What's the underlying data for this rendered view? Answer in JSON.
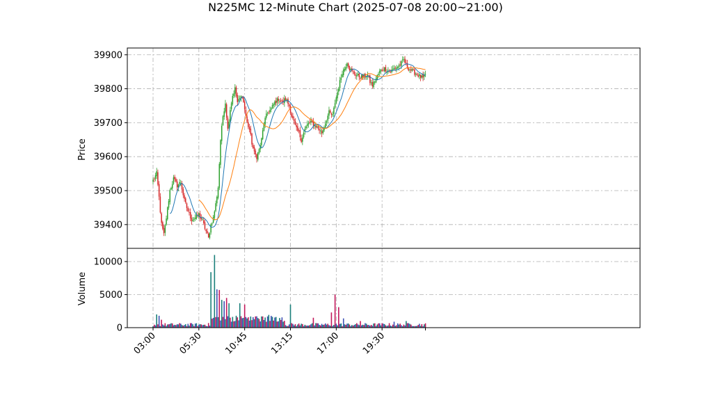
{
  "chart_data": {
    "type": "candlestick",
    "title": "N225MC 12-Minute Chart (2025-07-08 20:00~21:00)",
    "price_panel": {
      "ylabel": "Price",
      "ylim": [
        39330,
        39920
      ],
      "yticks": [
        39400,
        39500,
        39600,
        39700,
        39800,
        39900
      ]
    },
    "volume_panel": {
      "ylabel": "Volume",
      "ylim": [
        0,
        12000
      ],
      "yticks": [
        0,
        5000,
        10000
      ]
    },
    "xticks": [
      "03:00",
      "05:30",
      "10:45",
      "13:15",
      "17:00",
      "19:30"
    ],
    "grid": true,
    "colors": {
      "up": "#2ca02c",
      "down": "#d62728",
      "ma_short": "#1f77b4",
      "ma_long": "#ff7f0e",
      "vol_a": "#1a7f7a",
      "vol_b": "#c2185b",
      "vol_c": "#3f51b5"
    },
    "price_anchors": [
      [
        0,
        39530
      ],
      [
        3,
        39550
      ],
      [
        5,
        39480
      ],
      [
        7,
        39400
      ],
      [
        9,
        39370
      ],
      [
        11,
        39420
      ],
      [
        14,
        39500
      ],
      [
        17,
        39535
      ],
      [
        20,
        39515
      ],
      [
        23,
        39525
      ],
      [
        26,
        39470
      ],
      [
        29,
        39440
      ],
      [
        32,
        39415
      ],
      [
        35,
        39420
      ],
      [
        38,
        39430
      ],
      [
        41,
        39410
      ],
      [
        44,
        39380
      ],
      [
        46,
        39360
      ],
      [
        48,
        39400
      ],
      [
        50,
        39420
      ],
      [
        52,
        39460
      ],
      [
        54,
        39510
      ],
      [
        56,
        39650
      ],
      [
        58,
        39720
      ],
      [
        60,
        39760
      ],
      [
        62,
        39680
      ],
      [
        64,
        39740
      ],
      [
        66,
        39780
      ],
      [
        68,
        39800
      ],
      [
        70,
        39760
      ],
      [
        72,
        39770
      ],
      [
        74,
        39780
      ],
      [
        76,
        39740
      ],
      [
        78,
        39700
      ],
      [
        80,
        39680
      ],
      [
        82,
        39640
      ],
      [
        84,
        39610
      ],
      [
        86,
        39600
      ],
      [
        88,
        39620
      ],
      [
        90,
        39650
      ],
      [
        92,
        39700
      ],
      [
        95,
        39730
      ],
      [
        98,
        39740
      ],
      [
        101,
        39760
      ],
      [
        104,
        39770
      ],
      [
        107,
        39760
      ],
      [
        110,
        39770
      ],
      [
        113,
        39750
      ],
      [
        115,
        39720
      ],
      [
        117,
        39700
      ],
      [
        119,
        39680
      ],
      [
        121,
        39670
      ],
      [
        123,
        39650
      ],
      [
        126,
        39680
      ],
      [
        129,
        39700
      ],
      [
        132,
        39700
      ],
      [
        135,
        39690
      ],
      [
        138,
        39680
      ],
      [
        140,
        39670
      ],
      [
        143,
        39700
      ],
      [
        146,
        39730
      ],
      [
        149,
        39720
      ],
      [
        151,
        39760
      ],
      [
        153,
        39790
      ],
      [
        155,
        39820
      ],
      [
        157,
        39850
      ],
      [
        159,
        39860
      ],
      [
        161,
        39880
      ],
      [
        163,
        39860
      ],
      [
        165,
        39850
      ],
      [
        167,
        39845
      ],
      [
        169,
        39840
      ],
      [
        172,
        39835
      ],
      [
        175,
        39835
      ],
      [
        178,
        39840
      ],
      [
        180,
        39820
      ],
      [
        182,
        39810
      ],
      [
        185,
        39830
      ],
      [
        188,
        39850
      ],
      [
        191,
        39860
      ],
      [
        194,
        39855
      ],
      [
        197,
        39850
      ],
      [
        200,
        39860
      ],
      [
        203,
        39865
      ],
      [
        206,
        39875
      ],
      [
        208,
        39885
      ],
      [
        210,
        39870
      ],
      [
        212,
        39860
      ],
      [
        214,
        39855
      ],
      [
        216,
        39850
      ],
      [
        218,
        39845
      ],
      [
        220,
        39840
      ],
      [
        222,
        39835
      ],
      [
        224,
        39830
      ],
      [
        226,
        39840
      ]
    ],
    "volume_spikes": [
      [
        3,
        2000
      ],
      [
        5,
        1800
      ],
      [
        7,
        1200
      ],
      [
        46,
        700
      ],
      [
        48,
        8400
      ],
      [
        51,
        11000
      ],
      [
        53,
        5800
      ],
      [
        55,
        5700
      ],
      [
        57,
        4200
      ],
      [
        59,
        4000
      ],
      [
        61,
        4500
      ],
      [
        63,
        3700
      ],
      [
        72,
        3700
      ],
      [
        76,
        3500
      ],
      [
        91,
        1700
      ],
      [
        114,
        3500
      ],
      [
        133,
        1500
      ],
      [
        148,
        2300
      ],
      [
        151,
        5000
      ],
      [
        154,
        3100
      ],
      [
        158,
        1400
      ],
      [
        172,
        1000
      ],
      [
        200,
        900
      ],
      [
        210,
        1000
      ]
    ]
  }
}
